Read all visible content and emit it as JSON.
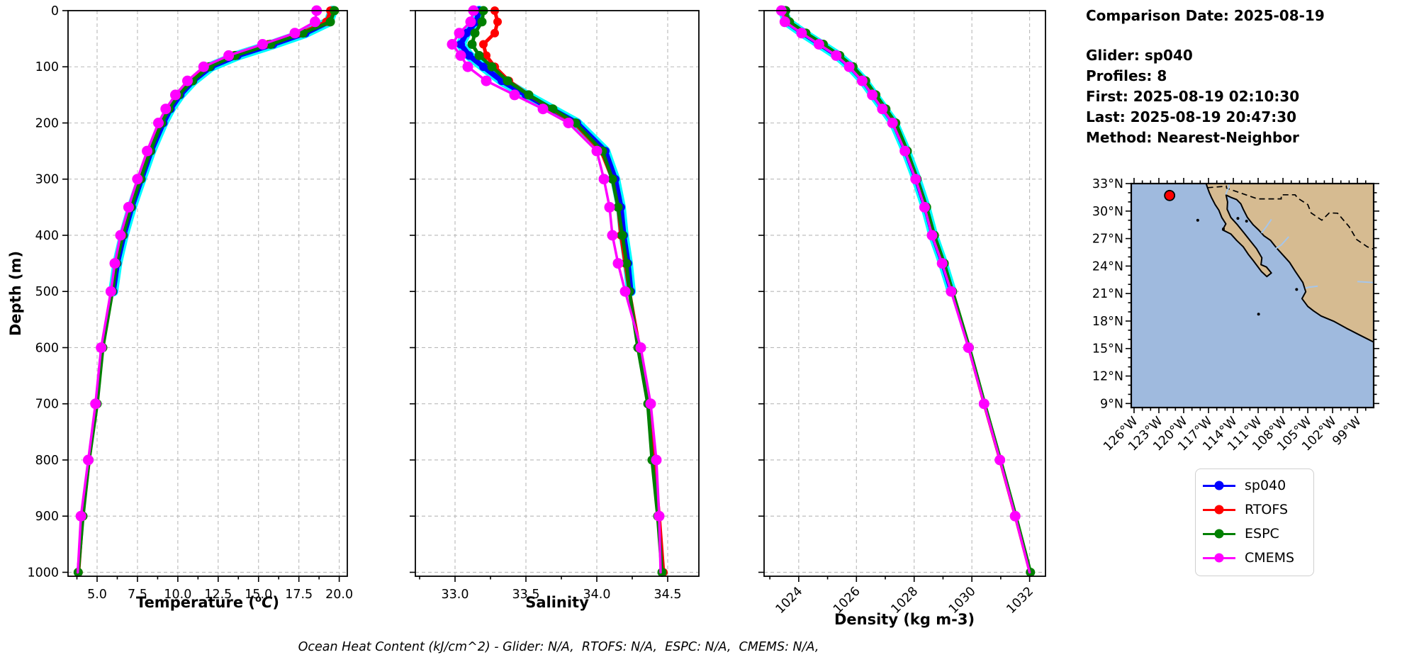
{
  "info_panel": {
    "title": "Comparison Date: 2025-08-19",
    "lines": [
      "Glider: sp040",
      "Profiles: 8",
      "First: 2025-08-19 02:10:30",
      "Last: 2025-08-19 20:47:30",
      "Method: Nearest-Neighbor"
    ]
  },
  "footer_note": "Ocean Heat Content (kJ/cm^2) - Glider: N/A,  RTOFS: N/A,  ESPC: N/A,  CMEMS: N/A,",
  "legend": [
    {
      "label": "sp040",
      "color": "#0000ff"
    },
    {
      "label": "RTOFS",
      "color": "#ff0000"
    },
    {
      "label": "ESPC",
      "color": "#008000"
    },
    {
      "label": "CMEMS",
      "color": "#ff00ff"
    }
  ],
  "axes": {
    "depth_label": "Depth (m)",
    "depth_tick_values": [
      0,
      100,
      200,
      300,
      400,
      500,
      600,
      700,
      800,
      900,
      1000
    ],
    "depth_tick_labels": [
      "0",
      "100",
      "200",
      "300",
      "400",
      "500",
      "600",
      "700",
      "800",
      "900",
      "1000"
    ]
  },
  "chart_data": [
    {
      "id": "temperature",
      "type": "line",
      "orientation": "depth-profile",
      "xlabel": "Temperature (°C)",
      "xlabel_pre": "Temperature (",
      "xlabel_sup": "o",
      "xlabel_var": "C",
      "xlabel_post": ")",
      "xlim": [
        3.2,
        20.5
      ],
      "ylim": [
        0,
        1007
      ],
      "grid": true,
      "show_depth_tick_labels": true,
      "rotate_xtick_labels": false,
      "xtick_values": [
        5.0,
        7.5,
        10.0,
        12.5,
        15.0,
        17.5,
        20.0
      ],
      "xtick_labels": [
        "5.0",
        "7.5",
        "10.0",
        "12.5",
        "15.0",
        "17.5",
        "20.0"
      ],
      "depths": [
        0,
        20,
        40,
        60,
        80,
        100,
        125,
        150,
        175,
        200,
        250,
        300,
        350,
        400,
        450,
        500,
        600,
        700,
        800,
        900,
        1000
      ],
      "envelope": {
        "name": "glider profiles",
        "color": "#00ffff"
      },
      "series": [
        {
          "name": "sp040",
          "color": "#0000ff",
          "values": [
            19.6,
            19.35,
            17.9,
            15.9,
            13.7,
            12.05,
            10.95,
            10.15,
            9.55,
            9.1,
            8.35,
            7.75,
            7.15,
            6.65,
            6.25,
            6.0,
            null,
            null,
            null,
            null,
            null
          ]
        },
        {
          "name": "RTOFS",
          "color": "#ff0000",
          "values": [
            19.45,
            19.2,
            17.6,
            15.6,
            13.45,
            11.85,
            10.8,
            10.0,
            9.4,
            8.95,
            8.25,
            7.65,
            7.05,
            6.55,
            6.15,
            5.9,
            5.3,
            4.95,
            4.5,
            4.1,
            3.85
          ]
        },
        {
          "name": "ESPC",
          "color": "#008000",
          "values": [
            19.7,
            19.45,
            17.75,
            15.75,
            13.55,
            11.95,
            10.9,
            10.05,
            9.45,
            9.0,
            8.3,
            7.7,
            7.1,
            6.6,
            6.2,
            5.95,
            5.35,
            5.0,
            4.5,
            4.12,
            3.83
          ]
        },
        {
          "name": "CMEMS",
          "color": "#ff00ff",
          "values": [
            18.6,
            18.5,
            17.25,
            15.25,
            13.15,
            11.6,
            10.6,
            9.85,
            9.25,
            8.8,
            8.1,
            7.5,
            6.95,
            6.45,
            6.1,
            5.85,
            5.25,
            4.9,
            4.45,
            4.0,
            3.8
          ]
        }
      ]
    },
    {
      "id": "salinity",
      "type": "line",
      "orientation": "depth-profile",
      "xlabel": "Salinity",
      "xlim": [
        32.72,
        34.72
      ],
      "ylim": [
        0,
        1007
      ],
      "grid": true,
      "show_depth_tick_labels": false,
      "rotate_xtick_labels": false,
      "xtick_values": [
        33.0,
        33.5,
        34.0,
        34.5
      ],
      "xtick_labels": [
        "33.0",
        "33.5",
        "34.0",
        "34.5"
      ],
      "depths": [
        0,
        20,
        40,
        60,
        80,
        100,
        125,
        150,
        175,
        200,
        250,
        300,
        350,
        400,
        450,
        500,
        600,
        700,
        800,
        900,
        1000
      ],
      "envelope": {
        "name": "glider profiles",
        "color": "#00ffff"
      },
      "series": [
        {
          "name": "sp040",
          "color": "#0000ff",
          "values": [
            33.17,
            33.15,
            33.08,
            33.04,
            33.1,
            33.2,
            33.33,
            33.5,
            33.68,
            33.86,
            34.06,
            34.13,
            34.17,
            34.19,
            34.22,
            34.24,
            null,
            null,
            null,
            null,
            null
          ]
        },
        {
          "name": "RTOFS",
          "color": "#ff0000",
          "values": [
            33.28,
            33.3,
            33.28,
            33.2,
            33.22,
            33.28,
            33.38,
            33.52,
            33.68,
            33.84,
            34.03,
            34.11,
            34.15,
            34.17,
            34.2,
            34.23,
            34.3,
            34.36,
            34.4,
            34.44,
            34.47
          ]
        },
        {
          "name": "ESPC",
          "color": "#008000",
          "values": [
            33.2,
            33.19,
            33.14,
            33.12,
            33.17,
            33.26,
            33.37,
            33.52,
            33.69,
            33.85,
            34.04,
            34.11,
            34.15,
            34.18,
            34.21,
            34.23,
            34.29,
            34.36,
            34.39,
            34.43,
            34.46
          ]
        },
        {
          "name": "CMEMS",
          "color": "#ff00ff",
          "values": [
            33.13,
            33.11,
            33.03,
            32.98,
            33.04,
            33.09,
            33.22,
            33.42,
            33.62,
            33.8,
            34.0,
            34.05,
            34.09,
            34.11,
            34.15,
            34.2,
            34.31,
            34.38,
            34.42,
            34.44,
            34.45
          ]
        }
      ]
    },
    {
      "id": "density",
      "type": "line",
      "orientation": "depth-profile",
      "xlabel": "Density (kg m-3)",
      "xlim": [
        1022.8,
        1032.55
      ],
      "ylim": [
        0,
        1007
      ],
      "grid": true,
      "show_depth_tick_labels": false,
      "rotate_xtick_labels": true,
      "xtick_values": [
        1024,
        1026,
        1028,
        1030,
        1032
      ],
      "xtick_labels": [
        "1024",
        "1026",
        "1028",
        "1030",
        "1032"
      ],
      "depths": [
        0,
        20,
        40,
        60,
        80,
        100,
        125,
        150,
        175,
        200,
        250,
        300,
        350,
        400,
        450,
        500,
        600,
        700,
        800,
        900,
        1000
      ],
      "envelope": {
        "name": "glider profiles",
        "color": "#00ffff"
      },
      "series": [
        {
          "name": "sp040",
          "color": "#0000ff",
          "values": [
            1023.45,
            1023.6,
            1024.15,
            1024.75,
            1025.35,
            1025.8,
            1026.25,
            1026.6,
            1026.95,
            1027.3,
            1027.72,
            1028.08,
            1028.4,
            1028.66,
            1029.0,
            1029.3,
            null,
            null,
            null,
            null,
            null
          ]
        },
        {
          "name": "RTOFS",
          "color": "#ff0000",
          "values": [
            1023.5,
            1023.62,
            1024.2,
            1024.8,
            1025.4,
            1025.85,
            1026.3,
            1026.65,
            1027.0,
            1027.35,
            1027.75,
            1028.1,
            1028.42,
            1028.68,
            1029.02,
            1029.32,
            1029.9,
            1030.43,
            1030.98,
            1031.51,
            1032.02
          ]
        },
        {
          "name": "ESPC",
          "color": "#008000",
          "values": [
            1023.55,
            1023.68,
            1024.25,
            1024.85,
            1025.42,
            1025.88,
            1026.32,
            1026.67,
            1027.02,
            1027.36,
            1027.76,
            1028.1,
            1028.43,
            1028.7,
            1029.04,
            1029.33,
            1029.91,
            1030.44,
            1030.99,
            1031.52,
            1032.03
          ]
        },
        {
          "name": "CMEMS",
          "color": "#ff00ff",
          "values": [
            1023.4,
            1023.52,
            1024.1,
            1024.7,
            1025.3,
            1025.75,
            1026.2,
            1026.55,
            1026.9,
            1027.25,
            1027.68,
            1028.05,
            1028.36,
            1028.62,
            1028.97,
            1029.28,
            1029.88,
            1030.42,
            1030.97,
            1031.5,
            1032.0
          ]
        }
      ]
    },
    {
      "id": "location-map",
      "type": "map",
      "region": "Baja California / Mexico Pacific coast",
      "ocean_color": "#9fbade",
      "land_color": "#d6bb91",
      "marker": {
        "lon": -121.7,
        "lat": 31.7,
        "color": "#ff0000"
      },
      "extent": {
        "lon": [
          -126.34,
          -97.04
        ],
        "lat": [
          8.56,
          33.0
        ]
      },
      "lat_tick_values": [
        33,
        30,
        27,
        24,
        21,
        18,
        15,
        12,
        9
      ],
      "lat_tick_labels": [
        "33°N",
        "30°N",
        "27°N",
        "24°N",
        "21°N",
        "18°N",
        "15°N",
        "12°N",
        "9°N"
      ],
      "lon_tick_values": [
        -126,
        -123,
        -120,
        -117,
        -114,
        -111,
        -108,
        -105,
        -102,
        -99
      ],
      "lon_tick_labels": [
        "126°W",
        "123°W",
        "120°W",
        "117°W",
        "114°W",
        "111°W",
        "108°W",
        "105°W",
        "102°W",
        "99°W"
      ]
    }
  ]
}
